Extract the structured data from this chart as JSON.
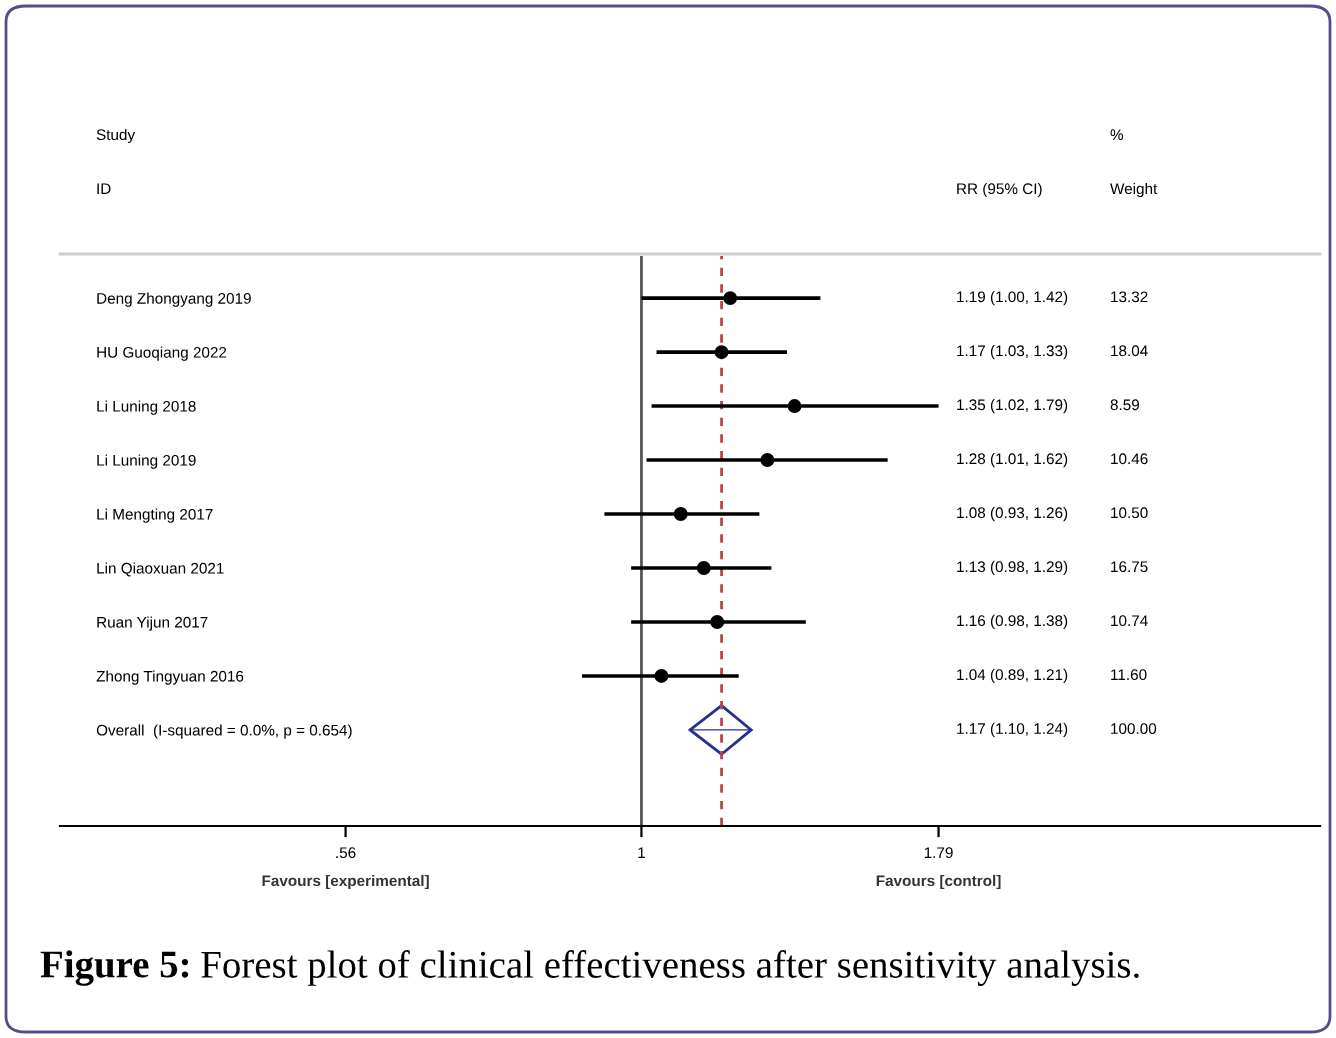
{
  "chart_data": {
    "type": "scatter",
    "orientation": "horizontal",
    "log": "x",
    "title": "Figure 5: Forest plot of clinical effectiveness after sensitivity analysis.",
    "categories": [
      "Deng Zhongyang 2019",
      "HU Guoqiang 2022",
      "Li Luning 2018",
      "Li Luning 2019",
      "Li Mengting 2017",
      "Lin Qiaoxuan 2021",
      "Ruan Yijun 2017",
      "Zhong Tingyuan 2016",
      "Overall  (I-squared = 0.0%, p = 0.654)"
    ],
    "series": [
      {
        "color": "#000000",
        "marker": "circle",
        "values": [
          1.19,
          1.17,
          1.35,
          1.28,
          1.08,
          1.13,
          1.16,
          1.04,
          null
        ],
        "errors": [
          [
            1.0,
            1.42
          ],
          [
            1.03,
            1.33
          ],
          [
            1.02,
            1.79
          ],
          [
            1.01,
            1.62
          ],
          [
            0.93,
            1.26
          ],
          [
            0.98,
            1.29
          ],
          [
            0.98,
            1.38
          ],
          [
            0.89,
            1.21
          ],
          null
        ]
      },
      {
        "color": "#2b2f8f",
        "marker": "diamond",
        "values": [
          null,
          null,
          null,
          null,
          null,
          null,
          null,
          null,
          1.17
        ],
        "errors": [
          null,
          null,
          null,
          null,
          null,
          null,
          null,
          null,
          [
            1.1,
            1.24
          ]
        ]
      }
    ],
    "xlim": [
      0.32,
      3.78
    ],
    "xticks": [
      {
        "value": 0.56,
        "label": ".56"
      },
      1,
      1.79
    ],
    "ref_lines": [
      {
        "axis": "x",
        "value": 1,
        "color": "#555555",
        "line_style": "solid"
      },
      {
        "axis": "x",
        "value": 1.17,
        "color": "#b5474b",
        "line_style": "dashed"
      }
    ],
    "annotations": [
      "Study",
      "ID",
      "RR (95% CI)",
      "%",
      "Weight",
      "Favours [experimental]",
      "Favours [control]",
      "1.19 (1.00, 1.42)",
      "1.17 (1.03, 1.33)",
      "1.35 (1.02, 1.79)",
      "1.28 (1.01, 1.62)",
      "1.08 (0.93, 1.26)",
      "1.13 (0.98, 1.29)",
      "1.16 (0.98, 1.38)",
      "1.04 (0.89, 1.21)",
      "1.17 (1.10, 1.24)",
      "13.32",
      "18.04",
      "8.59",
      "10.46",
      "10.50",
      "16.75",
      "10.74",
      "11.60",
      "100.00"
    ],
    "grid": false,
    "legend": false
  }
}
